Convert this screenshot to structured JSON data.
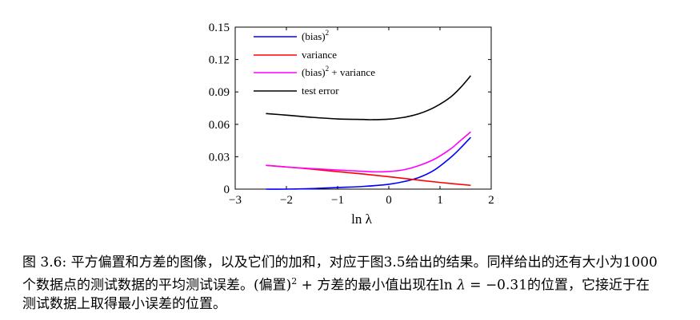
{
  "chart_data": {
    "type": "line",
    "xlabel": "ln λ",
    "ylabel": "",
    "xlim": [
      -3,
      2
    ],
    "ylim": [
      0,
      0.15
    ],
    "xticks": [
      "−3",
      "−2",
      "−1",
      "0",
      "1",
      "2"
    ],
    "yticks": [
      "0",
      "0.03",
      "0.06",
      "0.09",
      "0.12",
      "0.15"
    ],
    "grid": false,
    "legend_position": "top-left",
    "series": [
      {
        "name": "(bias)²",
        "color": "#0000ff",
        "x": [
          -2.4,
          -2.0,
          -1.5,
          -1.0,
          -0.5,
          0.0,
          0.3,
          0.6,
          0.9,
          1.2,
          1.4,
          1.6
        ],
        "y": [
          0.0,
          0.0,
          0.0005,
          0.0015,
          0.0025,
          0.0045,
          0.007,
          0.011,
          0.018,
          0.029,
          0.038,
          0.048
        ]
      },
      {
        "name": "variance",
        "color": "#ff0000",
        "x": [
          -2.4,
          -2.0,
          -1.5,
          -1.0,
          -0.5,
          0.0,
          0.5,
          1.0,
          1.6
        ],
        "y": [
          0.022,
          0.0205,
          0.0185,
          0.0162,
          0.014,
          0.0115,
          0.0088,
          0.0062,
          0.0035
        ]
      },
      {
        "name": "(bias)² + variance",
        "color": "#ff00ff",
        "x": [
          -2.4,
          -2.0,
          -1.5,
          -1.0,
          -0.5,
          -0.31,
          0.0,
          0.3,
          0.6,
          0.9,
          1.2,
          1.4,
          1.6
        ],
        "y": [
          0.022,
          0.0205,
          0.019,
          0.0177,
          0.0165,
          0.016,
          0.0163,
          0.018,
          0.022,
          0.028,
          0.037,
          0.045,
          0.053
        ]
      },
      {
        "name": "test error",
        "color": "#000000",
        "x": [
          -2.4,
          -2.0,
          -1.5,
          -1.0,
          -0.5,
          -0.31,
          0.0,
          0.3,
          0.6,
          0.9,
          1.2,
          1.4,
          1.6
        ],
        "y": [
          0.07,
          0.0685,
          0.0665,
          0.065,
          0.0645,
          0.0643,
          0.0648,
          0.0665,
          0.07,
          0.076,
          0.085,
          0.094,
          0.105
        ]
      }
    ]
  },
  "caption": {
    "line1": "图 3.6: 平方偏置和方差的图像，以及它们的加和，对应于图3.5给出的结果。同样给出的还有大小为1000",
    "line2_a": "个数据点的测试数据的平均测试误差。(偏置)",
    "line2_sup": "2",
    "line2_b": " + 方差的最小值出现在ln ",
    "line2_lambda": "λ",
    "line2_c": " = −0.31的位置，它接近于在",
    "line3": "测试数据上取得最小误差的位置。"
  }
}
